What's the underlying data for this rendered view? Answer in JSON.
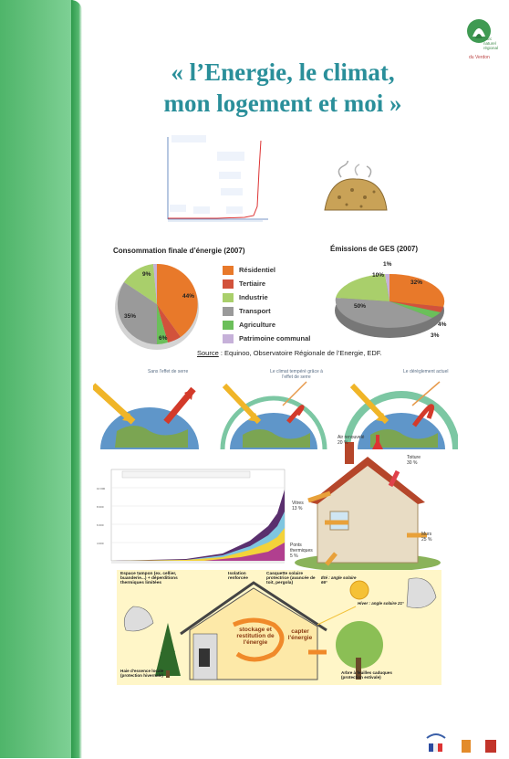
{
  "title": {
    "line1": "« l’Energie, le climat,",
    "line2": "mon logement et moi »"
  },
  "logo": {
    "line1": "Parc",
    "line2": "naturel",
    "line3": "régional",
    "line4": "du Verdon"
  },
  "pie1": {
    "title": "Consommation finale d’énergie (2007)",
    "labels": [
      "44%",
      "35%",
      "6%",
      "9%"
    ]
  },
  "pie2": {
    "title": "Émissions de GES (2007)",
    "labels": [
      "1%",
      "32%",
      "10%",
      "50%",
      "4%",
      "3%"
    ]
  },
  "legend": [
    "Résidentiel",
    "Tertiaire",
    "Industrie",
    "Transport",
    "Agriculture",
    "Patrimoine communal"
  ],
  "colors": {
    "residentiel": "#e8792a",
    "tertiaire": "#d2523b",
    "industrie": "#a9cf6b",
    "transport": "#9a9a9a",
    "agriculture": "#6bbf5a",
    "patrimoine": "#c6b1d9",
    "title": "#2a8f9a",
    "green": "#4fb56a"
  },
  "source": {
    "label": "Source",
    "text": " : Equinoo, Observatoire Régionale de l’Energie, EDF."
  },
  "greenhouse": {
    "caption1": "Sans l'effet de serre",
    "caption2": "Le climat tempéré grâce à l'effet de serre",
    "caption3": "Le dérèglement actuel"
  },
  "house": {
    "air": "Air renouvelé\n20 %",
    "toiture": "Toiture\n30 %",
    "vitres": "Vitres\n13 %",
    "ponts": "Ponts\nthermiques\n5 %",
    "murs": "Murs\n25 %"
  },
  "bioclim": {
    "espace": "Espace tampon (ex. cellier, buanderie...) + déperditions thermiques limitées",
    "isolation": "Isolation renforcée",
    "casquette": "Casquette solaire protectrice (avancée de toit, pergola)",
    "ete": "Été : angle solaire 66°",
    "hiver": "Hiver : angle solaire 21°",
    "stockage": "stockage et restitution de l'énergie",
    "capter": "capter l'énergie",
    "haie": "Haie d'essence locale (protection hivernale)",
    "arbre": "Arbre à feuilles caduques (protection estivale)"
  }
}
